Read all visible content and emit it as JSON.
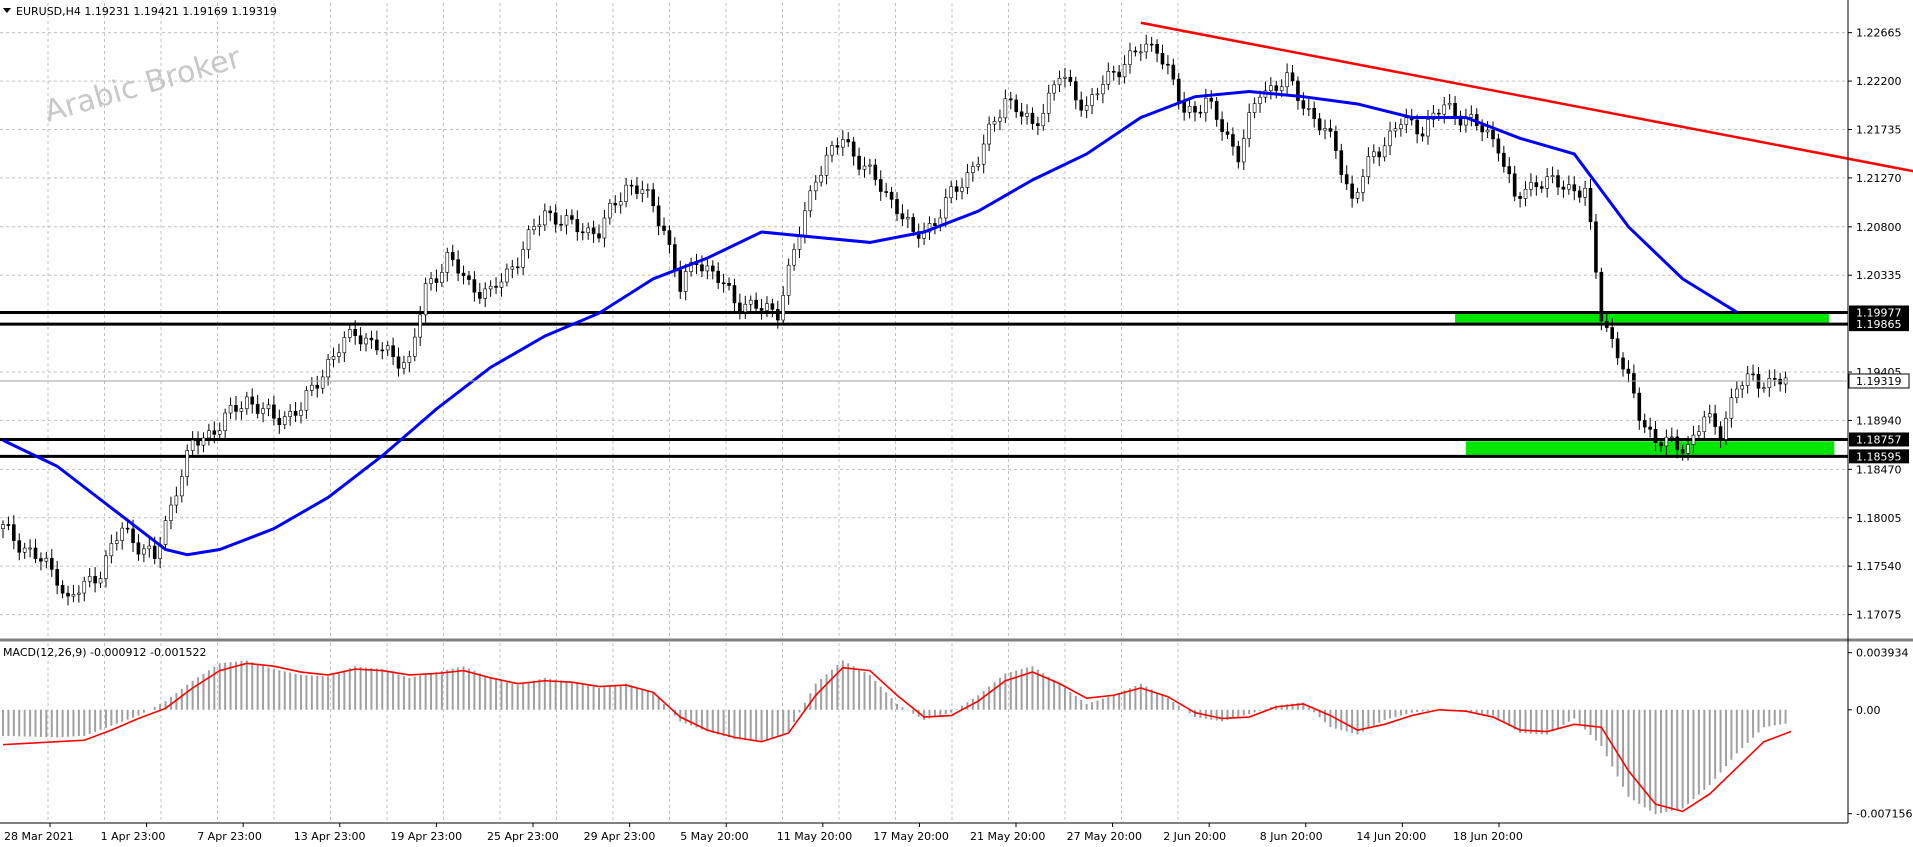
{
  "chart_data": [
    {
      "type": "candlestick",
      "header": {
        "symbol_tf": "EURUSD,H4",
        "open": "1.19231",
        "high": "1.19421",
        "low": "1.19169",
        "close": "1.19319"
      },
      "watermark": "Arabic Broker",
      "ylim": [
        1.1685,
        1.2295
      ],
      "y_ticks": [
        "1.22665",
        "1.22200",
        "1.21735",
        "1.21270",
        "1.20800",
        "1.20335",
        "1.19405",
        "1.18940",
        "1.18470",
        "1.18005",
        "1.17540",
        "1.17075"
      ],
      "x_ticks": [
        "28 Mar 2021",
        "1 Apr 23:00",
        "7 Apr 23:00",
        "13 Apr 23:00",
        "19 Apr 23:00",
        "25 Apr 23:00",
        "29 Apr 23:00",
        "5 May 20:00",
        "11 May 20:00",
        "17 May 20:00",
        "21 May 20:00",
        "27 May 20:00",
        "2 Jun 20:00",
        "8 Jun 20:00",
        "14 Jun 20:00",
        "18 Jun 20:00"
      ],
      "horizontal_lines": [
        {
          "label": "1.19977",
          "value": 1.19977,
          "color": "#000000"
        },
        {
          "label": "1.19865",
          "value": 1.19865,
          "color": "#000000"
        },
        {
          "label": "1.18757",
          "value": 1.18757,
          "color": "#000000"
        },
        {
          "label": "1.18595",
          "value": 1.18595,
          "color": "#000000"
        }
      ],
      "current_price": {
        "label": "1.19319",
        "value": 1.19319
      },
      "zones": [
        {
          "from_index": 268,
          "to_index": 337,
          "low": 1.1986,
          "high": 1.1998,
          "color": "#00e600"
        },
        {
          "from_index": 270,
          "to_index": 338,
          "low": 1.1859,
          "high": 1.1874,
          "color": "#00e600"
        }
      ],
      "trendline": {
        "color": "#ff0000",
        "points": [
          [
            210,
            1.2276
          ],
          [
            390,
            1.2096
          ]
        ]
      },
      "moving_average": {
        "color": "#0000ff",
        "points": [
          [
            0,
            1.1875
          ],
          [
            10,
            1.185
          ],
          [
            20,
            1.181
          ],
          [
            30,
            1.177
          ],
          [
            34,
            1.1765
          ],
          [
            40,
            1.177
          ],
          [
            50,
            1.179
          ],
          [
            60,
            1.182
          ],
          [
            70,
            1.186
          ],
          [
            80,
            1.1905
          ],
          [
            90,
            1.1945
          ],
          [
            100,
            1.1975
          ],
          [
            110,
            1.1997
          ],
          [
            120,
            1.203
          ],
          [
            130,
            1.205
          ],
          [
            140,
            1.2075
          ],
          [
            150,
            1.207
          ],
          [
            160,
            1.2065
          ],
          [
            170,
            1.2075
          ],
          [
            180,
            1.2095
          ],
          [
            190,
            1.2125
          ],
          [
            200,
            1.215
          ],
          [
            210,
            1.2185
          ],
          [
            220,
            1.2205
          ],
          [
            230,
            1.221
          ],
          [
            240,
            1.2205
          ],
          [
            250,
            1.2198
          ],
          [
            260,
            1.2185
          ],
          [
            270,
            1.2185
          ],
          [
            280,
            1.2165
          ],
          [
            290,
            1.215
          ],
          [
            300,
            1.208
          ],
          [
            310,
            1.203
          ],
          [
            320,
            1.1998
          ]
        ]
      },
      "candle_path": [
        [
          0,
          1.179
        ],
        [
          10,
          1.1745
        ],
        [
          12,
          1.172
        ],
        [
          18,
          1.175
        ],
        [
          22,
          1.179
        ],
        [
          28,
          1.176
        ],
        [
          32,
          1.183
        ],
        [
          35,
          1.187
        ],
        [
          40,
          1.189
        ],
        [
          45,
          1.1915
        ],
        [
          50,
          1.1895
        ],
        [
          55,
          1.1905
        ],
        [
          60,
          1.195
        ],
        [
          65,
          1.198
        ],
        [
          70,
          1.196
        ],
        [
          75,
          1.195
        ],
        [
          78,
          1.202
        ],
        [
          82,
          1.205
        ],
        [
          86,
          1.2025
        ],
        [
          90,
          1.2015
        ],
        [
          95,
          1.205
        ],
        [
          100,
          1.2095
        ],
        [
          105,
          1.208
        ],
        [
          110,
          1.2075
        ],
        [
          115,
          1.212
        ],
        [
          118,
          1.2115
        ],
        [
          122,
          1.208
        ],
        [
          125,
          1.202
        ],
        [
          128,
          1.205
        ],
        [
          131,
          1.2035
        ],
        [
          135,
          1.201
        ],
        [
          140,
          1.2
        ],
        [
          143,
          1.2
        ],
        [
          146,
          1.2055
        ],
        [
          150,
          1.213
        ],
        [
          155,
          1.2165
        ],
        [
          160,
          1.213
        ],
        [
          165,
          1.21
        ],
        [
          168,
          1.207
        ],
        [
          172,
          1.2085
        ],
        [
          175,
          1.211
        ],
        [
          180,
          1.2145
        ],
        [
          185,
          1.2205
        ],
        [
          190,
          1.2175
        ],
        [
          195,
          1.2225
        ],
        [
          200,
          1.2195
        ],
        [
          205,
          1.223
        ],
        [
          210,
          1.225
        ],
        [
          213,
          1.2255
        ],
        [
          218,
          1.219
        ],
        [
          222,
          1.22
        ],
        [
          228,
          1.215
        ],
        [
          232,
          1.221
        ],
        [
          237,
          1.222
        ],
        [
          242,
          1.2185
        ],
        [
          246,
          1.2155
        ],
        [
          249,
          1.2105
        ],
        [
          253,
          1.215
        ],
        [
          258,
          1.218
        ],
        [
          262,
          1.2175
        ],
        [
          266,
          1.2195
        ],
        [
          270,
          1.2185
        ],
        [
          276,
          1.216
        ],
        [
          279,
          1.2105
        ],
        [
          283,
          1.2125
        ],
        [
          287,
          1.212
        ],
        [
          292,
          1.2115
        ],
        [
          295,
          1.1995
        ],
        [
          298,
          1.196
        ],
        [
          302,
          1.19
        ],
        [
          305,
          1.1875
        ],
        [
          308,
          1.187
        ],
        [
          311,
          1.187
        ],
        [
          314,
          1.1895
        ],
        [
          317,
          1.1885
        ],
        [
          320,
          1.1925
        ],
        [
          323,
          1.1935
        ],
        [
          326,
          1.193
        ],
        [
          330,
          1.1932
        ]
      ],
      "candle_count": 330
    },
    {
      "type": "macd",
      "label": "MACD(12,26,9) -0.000912 -0.001522",
      "ylim": [
        -0.0078,
        0.0046
      ],
      "y_ticks": [
        "0.003934",
        "0.00",
        "-0.007156"
      ],
      "histogram_color": "#a0a0a0",
      "signal_color": "#ff0000",
      "macd_points": [
        [
          0,
          -0.0018
        ],
        [
          10,
          -0.0019
        ],
        [
          15,
          -0.0018
        ],
        [
          20,
          -0.0011
        ],
        [
          25,
          -0.0004
        ],
        [
          30,
          0.0006
        ],
        [
          35,
          0.002
        ],
        [
          40,
          0.0032
        ],
        [
          45,
          0.0034
        ],
        [
          50,
          0.0028
        ],
        [
          55,
          0.0024
        ],
        [
          60,
          0.0023
        ],
        [
          65,
          0.003
        ],
        [
          70,
          0.0028
        ],
        [
          75,
          0.0022
        ],
        [
          80,
          0.0026
        ],
        [
          85,
          0.003
        ],
        [
          90,
          0.0022
        ],
        [
          95,
          0.0017
        ],
        [
          100,
          0.0022
        ],
        [
          105,
          0.0019
        ],
        [
          110,
          0.0015
        ],
        [
          115,
          0.0018
        ],
        [
          120,
          0.0012
        ],
        [
          125,
          -0.0008
        ],
        [
          130,
          -0.0015
        ],
        [
          135,
          -0.002
        ],
        [
          140,
          -0.0022
        ],
        [
          145,
          -0.0015
        ],
        [
          150,
          0.0018
        ],
        [
          155,
          0.0034
        ],
        [
          160,
          0.0024
        ],
        [
          165,
          0.0004
        ],
        [
          170,
          -0.0007
        ],
        [
          175,
          -0.0002
        ],
        [
          180,
          0.001
        ],
        [
          185,
          0.0025
        ],
        [
          190,
          0.003
        ],
        [
          195,
          0.0018
        ],
        [
          200,
          0.0004
        ],
        [
          205,
          0.001
        ],
        [
          210,
          0.0018
        ],
        [
          215,
          0.0008
        ],
        [
          220,
          -0.0005
        ],
        [
          225,
          -0.0008
        ],
        [
          230,
          -0.0003
        ],
        [
          235,
          0.0003
        ],
        [
          240,
          0.0005
        ],
        [
          245,
          -0.0012
        ],
        [
          250,
          -0.0017
        ],
        [
          255,
          -0.0007
        ],
        [
          260,
          -0.0002
        ],
        [
          265,
          0.0
        ],
        [
          270,
          -0.0001
        ],
        [
          275,
          -0.0004
        ],
        [
          280,
          -0.0016
        ],
        [
          285,
          -0.0017
        ],
        [
          290,
          -0.0006
        ],
        [
          295,
          -0.0025
        ],
        [
          300,
          -0.006
        ],
        [
          305,
          -0.0072
        ],
        [
          310,
          -0.0068
        ],
        [
          315,
          -0.0052
        ],
        [
          320,
          -0.003
        ],
        [
          325,
          -0.0012
        ],
        [
          330,
          -0.0009
        ]
      ],
      "signal_points": [
        [
          0,
          -0.0024
        ],
        [
          10,
          -0.0022
        ],
        [
          15,
          -0.0021
        ],
        [
          20,
          -0.0014
        ],
        [
          25,
          -0.0006
        ],
        [
          30,
          0.0001
        ],
        [
          35,
          0.0015
        ],
        [
          40,
          0.0027
        ],
        [
          45,
          0.0032
        ],
        [
          50,
          0.003
        ],
        [
          55,
          0.0026
        ],
        [
          60,
          0.0024
        ],
        [
          65,
          0.0028
        ],
        [
          70,
          0.0027
        ],
        [
          75,
          0.0024
        ],
        [
          80,
          0.0025
        ],
        [
          85,
          0.0027
        ],
        [
          90,
          0.0022
        ],
        [
          95,
          0.0018
        ],
        [
          100,
          0.002
        ],
        [
          105,
          0.0019
        ],
        [
          110,
          0.0016
        ],
        [
          115,
          0.0017
        ],
        [
          120,
          0.0012
        ],
        [
          125,
          -0.0005
        ],
        [
          130,
          -0.0014
        ],
        [
          135,
          -0.0019
        ],
        [
          140,
          -0.0022
        ],
        [
          145,
          -0.0016
        ],
        [
          150,
          0.001
        ],
        [
          155,
          0.0029
        ],
        [
          160,
          0.0027
        ],
        [
          165,
          0.001
        ],
        [
          170,
          -0.0005
        ],
        [
          175,
          -0.0004
        ],
        [
          180,
          0.0006
        ],
        [
          185,
          0.002
        ],
        [
          190,
          0.0026
        ],
        [
          195,
          0.0018
        ],
        [
          200,
          0.0008
        ],
        [
          205,
          0.001
        ],
        [
          210,
          0.0015
        ],
        [
          215,
          0.0009
        ],
        [
          220,
          -0.0002
        ],
        [
          225,
          -0.0006
        ],
        [
          230,
          -0.0005
        ],
        [
          235,
          0.0002
        ],
        [
          240,
          0.0004
        ],
        [
          245,
          -0.0004
        ],
        [
          250,
          -0.0014
        ],
        [
          255,
          -0.001
        ],
        [
          260,
          -0.0004
        ],
        [
          265,
          0.0
        ],
        [
          270,
          -0.0001
        ],
        [
          275,
          -0.0005
        ],
        [
          280,
          -0.0014
        ],
        [
          285,
          -0.0015
        ],
        [
          290,
          -0.001
        ],
        [
          295,
          -0.0012
        ],
        [
          300,
          -0.0042
        ],
        [
          305,
          -0.0065
        ],
        [
          310,
          -0.007
        ],
        [
          315,
          -0.0058
        ],
        [
          320,
          -0.004
        ],
        [
          325,
          -0.0022
        ],
        [
          330,
          -0.0015
        ]
      ]
    }
  ]
}
